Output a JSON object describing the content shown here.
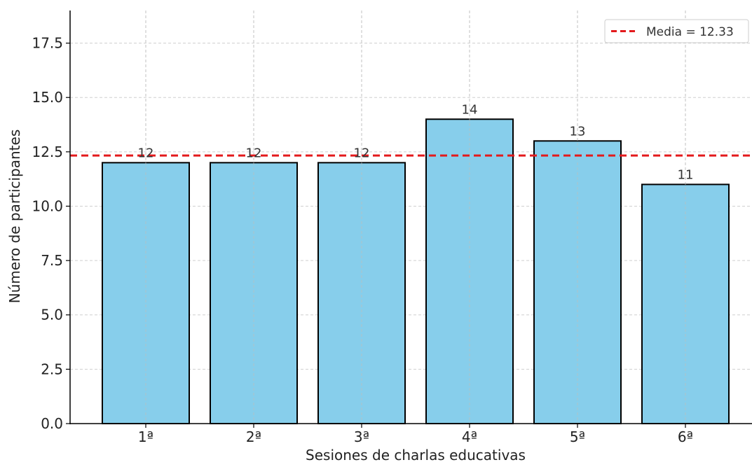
{
  "chart_data": {
    "type": "bar",
    "title": "",
    "xlabel": "Sesiones de charlas educativas",
    "ylabel": "Número de participantes",
    "categories": [
      "1ª",
      "2ª",
      "3ª",
      "4ª",
      "5ª",
      "6ª"
    ],
    "values": [
      12,
      12,
      12,
      14,
      13,
      11
    ],
    "data_labels": [
      "12",
      "12",
      "12",
      "14",
      "13",
      "11"
    ],
    "ylim": [
      0,
      19
    ],
    "yticks": [
      0.0,
      2.5,
      5.0,
      7.5,
      10.0,
      12.5,
      15.0,
      17.5
    ],
    "ytick_labels": [
      "0.0",
      "2.5",
      "5.0",
      "7.5",
      "10.0",
      "12.5",
      "15.0",
      "17.5"
    ],
    "mean_line": {
      "value": 12.33,
      "label": "Media = 12.33",
      "color": "#e31a1c",
      "style": "dashed"
    },
    "bar_color": "#87ceeb",
    "bar_edge_color": "#000000",
    "grid": true,
    "grid_style": "dashed",
    "legend_position": "top-right"
  }
}
